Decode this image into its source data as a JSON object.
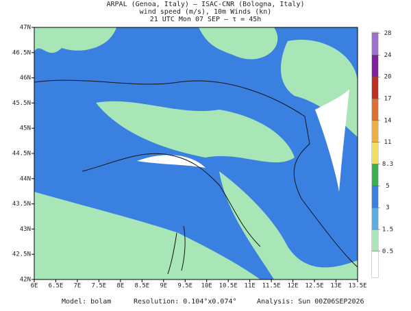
{
  "header": {
    "line1": "ARPAL (Genoa, Italy)  —  ISAC-CNR (Bologna, Italy)",
    "line2": "wind speed (m/s), 10m Winds (kn)",
    "line3": "21 UTC Mon 07 SEP  —  τ = 45h"
  },
  "map": {
    "xlim": [
      6,
      13.5
    ],
    "ylim": [
      42,
      47
    ],
    "xticks": [
      {
        "value": 6,
        "label": "6E"
      },
      {
        "value": 6.5,
        "label": "6.5E"
      },
      {
        "value": 7,
        "label": "7E"
      },
      {
        "value": 7.5,
        "label": "7.5E"
      },
      {
        "value": 8,
        "label": "8E"
      },
      {
        "value": 8.5,
        "label": "8.5E"
      },
      {
        "value": 9,
        "label": "9E"
      },
      {
        "value": 9.5,
        "label": "9.5E"
      },
      {
        "value": 10,
        "label": "10E"
      },
      {
        "value": 10.5,
        "label": "10.5E"
      },
      {
        "value": 11,
        "label": "11E"
      },
      {
        "value": 11.5,
        "label": "11.5E"
      },
      {
        "value": 12,
        "label": "12E"
      },
      {
        "value": 12.5,
        "label": "12.5E"
      },
      {
        "value": 13,
        "label": "13E"
      },
      {
        "value": 13.5,
        "label": "13.5E"
      }
    ],
    "yticks": [
      {
        "value": 42,
        "label": "42N"
      },
      {
        "value": 42.5,
        "label": "42.5N"
      },
      {
        "value": 43,
        "label": "43N"
      },
      {
        "value": 43.5,
        "label": "43.5N"
      },
      {
        "value": 44,
        "label": "44N"
      },
      {
        "value": 44.5,
        "label": "44.5N"
      },
      {
        "value": 45,
        "label": "45N"
      },
      {
        "value": 45.5,
        "label": "45.5N"
      },
      {
        "value": 46,
        "label": "46N"
      },
      {
        "value": 46.5,
        "label": "46.5N"
      },
      {
        "value": 47,
        "label": "47N"
      }
    ]
  },
  "colorbar": {
    "levels": [
      0.5,
      1.5,
      3,
      5,
      8.3,
      11,
      14,
      17,
      20,
      24,
      28
    ],
    "colors": [
      "#ffffff",
      "#a8e6b8",
      "#5aaee8",
      "#3a80e0",
      "#3cb050",
      "#f0e060",
      "#f0b040",
      "#e07030",
      "#c03020",
      "#8020a0",
      "#a070d0",
      "#c8a8e8"
    ]
  },
  "footer": {
    "model": "Model: bolam",
    "resolution": "Resolution: 0.104°x0.074°",
    "analysis": "Analysis: Sun 00Z06SEP2026"
  }
}
